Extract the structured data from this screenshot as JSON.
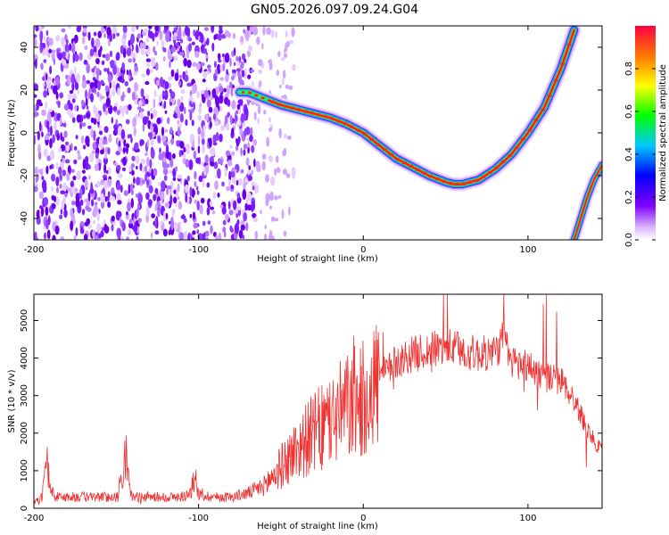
{
  "title": "GN05.2026.097.09.24.G04",
  "chart_data": [
    {
      "type": "heatmap",
      "xlabel": "Height of straight line (km)",
      "ylabel": "Frequency (Hz)",
      "xlim": [
        -200,
        145
      ],
      "ylim": [
        -50,
        50
      ],
      "xticks": [
        -200,
        -100,
        0,
        100
      ],
      "yticks": [
        -40,
        -20,
        0,
        20,
        40
      ],
      "colorbar": {
        "label": "Normalized spectral amplitude",
        "range": [
          0,
          1
        ],
        "ticks": [
          "0.0",
          "0.2",
          "0.4",
          "0.6",
          "0.8"
        ],
        "colors": [
          "#ffffff",
          "#8000ff",
          "#0000ff",
          "#00c0ff",
          "#00ff00",
          "#ffff00",
          "#ff8000",
          "#ff0000"
        ]
      },
      "noise_region_x": [
        -200,
        -42
      ],
      "main_track": {
        "x": [
          -75,
          -70,
          -60,
          -50,
          -40,
          -30,
          -20,
          -10,
          0,
          10,
          20,
          30,
          40,
          50,
          55,
          60,
          70,
          80,
          90,
          100,
          110,
          120,
          128
        ],
        "y": [
          19,
          19,
          16,
          13,
          11,
          9,
          7,
          4,
          0,
          -6,
          -12,
          -16,
          -20,
          -23,
          -24,
          -24,
          -22,
          -17,
          -10,
          0,
          12,
          30,
          48
        ]
      },
      "secondary_track": {
        "x": [
          128,
          132,
          136,
          140,
          145
        ],
        "y": [
          -50,
          -40,
          -30,
          -22,
          -15
        ]
      }
    },
    {
      "type": "line",
      "xlabel": "Height of straight line (km)",
      "ylabel": "SNR (10 * v/v)",
      "xlim": [
        -200,
        145
      ],
      "ylim": [
        0,
        5700
      ],
      "xticks": [
        -200,
        -100,
        0,
        100
      ],
      "yticks": [
        0,
        1000,
        2000,
        3000,
        4000,
        5000
      ],
      "color": "#ee3333",
      "series": [
        {
          "x": [
            -200,
            -195,
            -192,
            -190,
            -187,
            -180,
            -170,
            -160,
            -150,
            -146,
            -144,
            -142,
            -140,
            -130,
            -120,
            -110,
            -105,
            -102,
            -100,
            -90,
            -80,
            -70,
            -60,
            -50,
            -40,
            -30,
            -20,
            -10,
            0,
            10,
            20,
            30,
            40,
            50,
            60,
            70,
            80,
            85,
            90,
            100,
            110,
            120,
            125,
            130,
            135,
            140,
            145
          ],
          "y": [
            150,
            300,
            1300,
            500,
            300,
            300,
            300,
            300,
            300,
            900,
            1500,
            500,
            300,
            300,
            300,
            300,
            400,
            900,
            350,
            300,
            300,
            400,
            600,
            1100,
            1600,
            2000,
            2300,
            2700,
            2900,
            3500,
            3900,
            4100,
            4200,
            4300,
            4200,
            4100,
            4150,
            4500,
            3900,
            3800,
            3500,
            3400,
            3100,
            2700,
            2200,
            1800,
            1500
          ]
        }
      ]
    }
  ]
}
